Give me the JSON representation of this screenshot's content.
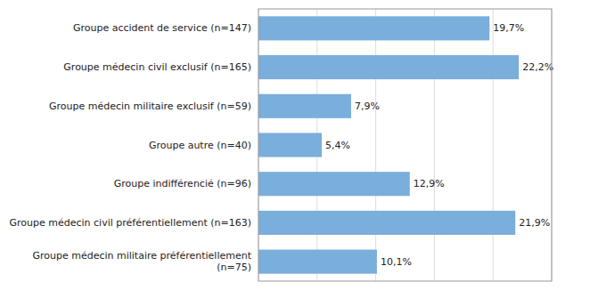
{
  "chart_data": {
    "type": "bar",
    "orientation": "horizontal",
    "categories": [
      "Groupe médecin militaire préférentiellement\n(n=75)",
      "Groupe médecin civil préférentiellement (n=163)",
      "Groupe indifférencié (n=96)",
      "Groupe autre (n=40)",
      "Groupe médecin militaire exclusif (n=59)",
      "Groupe médecin civil exclusif (n=165)",
      "Groupe accident de service (n=147)"
    ],
    "values": [
      10.1,
      21.9,
      12.9,
      5.4,
      7.9,
      22.2,
      19.7
    ],
    "value_labels": [
      "10,1%",
      "21,9%",
      "12,9%",
      "5,4%",
      "7,9%",
      "22,2%",
      "19,7%"
    ],
    "color": "#7aaedb",
    "xlim": [
      0,
      25
    ],
    "xticks": [
      0,
      5,
      10,
      15,
      20,
      25
    ],
    "grid": true,
    "tick_labels": false,
    "data_labels": true
  }
}
